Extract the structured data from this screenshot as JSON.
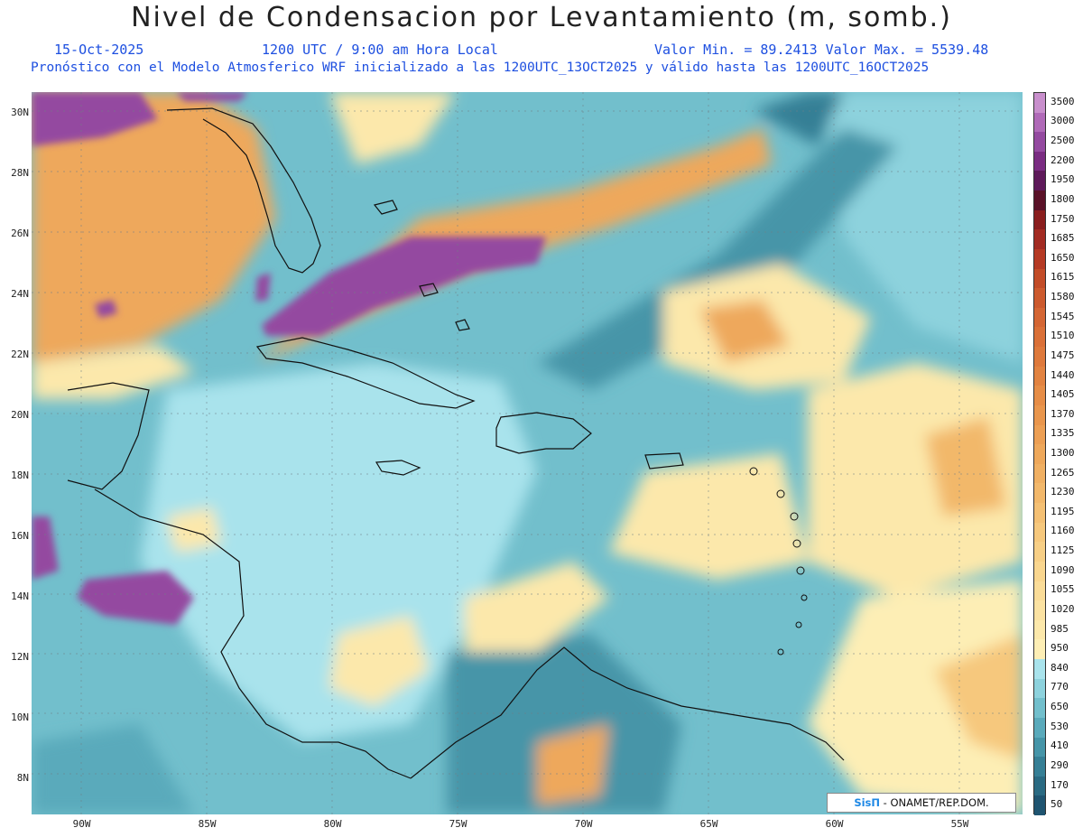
{
  "header": {
    "title": "Nivel de Condensacion por Levantamiento (m, somb.)",
    "date": "15-Oct-2025",
    "time": "1200 UTC / 9:00 am Hora Local",
    "stats": "Valor Min. = 89.2413  Valor Max. = 5539.48",
    "description": "Pronóstico con el Modelo Atmosferico WRF inicializado a las 1200UTC_13OCT2025 y válido hasta las  1200UTC_16OCT2025"
  },
  "map": {
    "lon_range": [
      -92.0,
      -52.5
    ],
    "lat_range": [
      6.8,
      30.7
    ],
    "lat_ticks": [
      "30N",
      "28N",
      "26N",
      "24N",
      "22N",
      "20N",
      "18N",
      "16N",
      "14N",
      "12N",
      "10N",
      "8N"
    ],
    "lon_ticks": [
      "90W",
      "85W",
      "80W",
      "75W",
      "70W",
      "65W",
      "60W",
      "55W"
    ]
  },
  "colorbar": {
    "labels": [
      "3500",
      "3000",
      "2500",
      "2200",
      "1950",
      "1800",
      "1750",
      "1685",
      "1650",
      "1615",
      "1580",
      "1545",
      "1510",
      "1475",
      "1440",
      "1405",
      "1370",
      "1335",
      "1300",
      "1265",
      "1230",
      "1195",
      "1160",
      "1125",
      "1090",
      "1055",
      "1020",
      "985",
      "950",
      "840",
      "770",
      "650",
      "530",
      "410",
      "290",
      "170",
      "50"
    ],
    "colors": [
      "#c88fcc",
      "#b06ab8",
      "#944aa0",
      "#7a2c82",
      "#5e1a5a",
      "#5a1228",
      "#8a1e1e",
      "#a22b22",
      "#b53a24",
      "#c24c28",
      "#cc5a2e",
      "#d46634",
      "#da7038",
      "#de793c",
      "#e28341",
      "#e68d47",
      "#e9964d",
      "#ec9f54",
      "#eea85b",
      "#f0b063",
      "#f2b86b",
      "#f4c074",
      "#f6c87d",
      "#f7cf86",
      "#f9d68f",
      "#fadc98",
      "#fbe2a2",
      "#fce8ab",
      "#fdeeb5",
      "#a9e3ec",
      "#8dd2dd",
      "#72bfcc",
      "#5aaabb",
      "#4695a8",
      "#367f95",
      "#2a6a82",
      "#1f5470"
    ]
  },
  "credit": {
    "logo": "SisΠ",
    "text": " - ONAMET/REP.DOM."
  }
}
